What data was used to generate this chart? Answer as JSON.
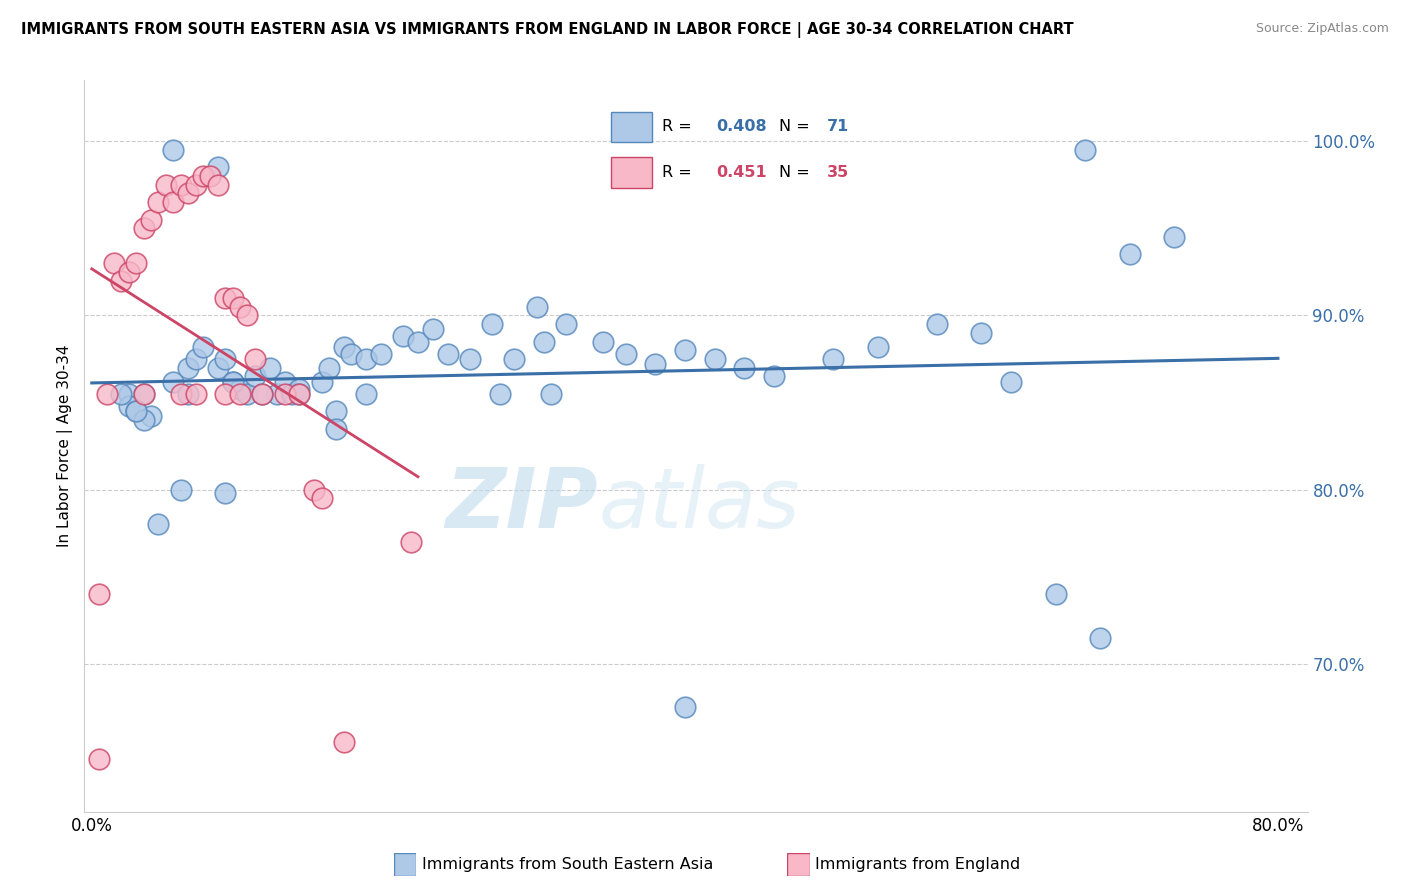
{
  "title": "IMMIGRANTS FROM SOUTH EASTERN ASIA VS IMMIGRANTS FROM ENGLAND IN LABOR FORCE | AGE 30-34 CORRELATION CHART",
  "source": "Source: ZipAtlas.com",
  "blue_label": "Immigrants from South Eastern Asia",
  "pink_label": "Immigrants from England",
  "ylabel": "In Labor Force | Age 30-34",
  "watermark_zip": "ZIP",
  "watermark_atlas": "atlas",
  "blue_R": 0.408,
  "blue_N": 71,
  "pink_R": 0.451,
  "pink_N": 35,
  "blue_face": "#aec8e8",
  "blue_edge": "#5588bb",
  "pink_face": "#f8b8c8",
  "pink_edge": "#cc4466",
  "blue_line": "#3a6fa8",
  "pink_line": "#cc4466",
  "xlim": [
    -0.005,
    0.82
  ],
  "ylim": [
    0.615,
    1.035
  ],
  "yticks": [
    0.7,
    0.8,
    0.9,
    1.0
  ],
  "ytick_labels": [
    "70.0%",
    "80.0%",
    "90.0%",
    "100.0%"
  ],
  "xticks": [
    0.0,
    0.1,
    0.2,
    0.3,
    0.4,
    0.5,
    0.6,
    0.7,
    0.8
  ],
  "blue_x": [
    0.055,
    0.085,
    0.025,
    0.035,
    0.025,
    0.03,
    0.04,
    0.035,
    0.055,
    0.065,
    0.07,
    0.075,
    0.065,
    0.085,
    0.09,
    0.095,
    0.1,
    0.105,
    0.095,
    0.11,
    0.12,
    0.125,
    0.13,
    0.135,
    0.14,
    0.155,
    0.16,
    0.17,
    0.175,
    0.185,
    0.195,
    0.21,
    0.22,
    0.23,
    0.24,
    0.255,
    0.27,
    0.285,
    0.305,
    0.32,
    0.345,
    0.36,
    0.38,
    0.4,
    0.42,
    0.44,
    0.46,
    0.5,
    0.53,
    0.57,
    0.6,
    0.62,
    0.65,
    0.68,
    0.02,
    0.03,
    0.045,
    0.06,
    0.09,
    0.115,
    0.14,
    0.165,
    0.185,
    0.275,
    0.31,
    0.4,
    0.67,
    0.7,
    0.73,
    0.3,
    0.165
  ],
  "blue_y": [
    0.995,
    0.985,
    0.855,
    0.855,
    0.848,
    0.845,
    0.842,
    0.84,
    0.862,
    0.87,
    0.875,
    0.882,
    0.855,
    0.87,
    0.875,
    0.862,
    0.858,
    0.855,
    0.862,
    0.865,
    0.87,
    0.855,
    0.862,
    0.855,
    0.858,
    0.862,
    0.87,
    0.882,
    0.878,
    0.875,
    0.878,
    0.888,
    0.885,
    0.892,
    0.878,
    0.875,
    0.895,
    0.875,
    0.885,
    0.895,
    0.885,
    0.878,
    0.872,
    0.88,
    0.875,
    0.87,
    0.865,
    0.875,
    0.882,
    0.895,
    0.89,
    0.862,
    0.74,
    0.715,
    0.855,
    0.845,
    0.78,
    0.8,
    0.798,
    0.855,
    0.855,
    0.845,
    0.855,
    0.855,
    0.855,
    0.675,
    0.995,
    0.935,
    0.945,
    0.905,
    0.835
  ],
  "pink_x": [
    0.005,
    0.01,
    0.015,
    0.02,
    0.025,
    0.03,
    0.035,
    0.04,
    0.045,
    0.05,
    0.055,
    0.06,
    0.065,
    0.07,
    0.075,
    0.08,
    0.085,
    0.09,
    0.095,
    0.1,
    0.105,
    0.11,
    0.035,
    0.06,
    0.07,
    0.09,
    0.1,
    0.115,
    0.13,
    0.14,
    0.15,
    0.155,
    0.17,
    0.215,
    0.005
  ],
  "pink_y": [
    0.645,
    0.855,
    0.93,
    0.92,
    0.925,
    0.93,
    0.95,
    0.955,
    0.965,
    0.975,
    0.965,
    0.975,
    0.97,
    0.975,
    0.98,
    0.98,
    0.975,
    0.91,
    0.91,
    0.905,
    0.9,
    0.875,
    0.855,
    0.855,
    0.855,
    0.855,
    0.855,
    0.855,
    0.855,
    0.855,
    0.8,
    0.795,
    0.655,
    0.77,
    0.74
  ]
}
